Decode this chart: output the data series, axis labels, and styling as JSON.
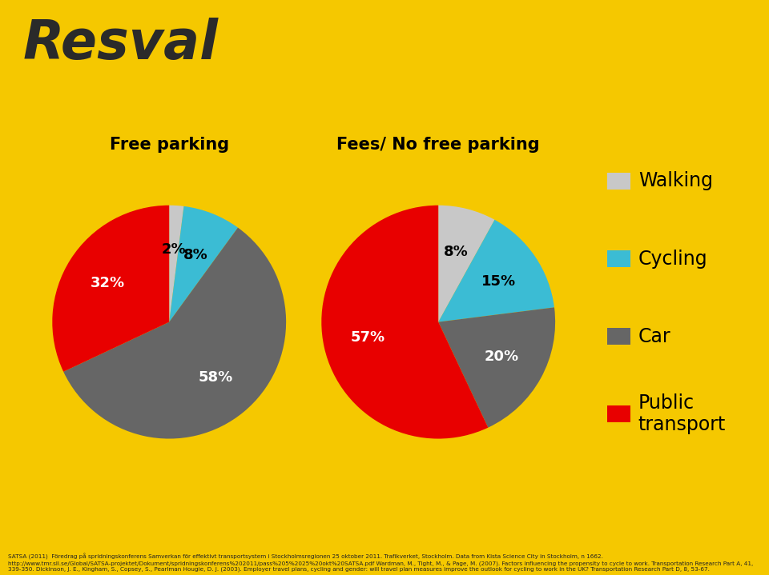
{
  "background_color": "#F5C800",
  "title_text": "Resval",
  "title_color": "#2a2a2a",
  "pie1_title": "Free parking",
  "pie2_title": "Fees/ No free parking",
  "pie1_values": [
    2,
    8,
    58,
    32
  ],
  "pie2_values": [
    8,
    15,
    20,
    57
  ],
  "pie1_labels": [
    "2%",
    "8%",
    "58%",
    "32%"
  ],
  "pie2_labels": [
    "8%",
    "15%",
    "20%",
    "57%"
  ],
  "colors": [
    "#c8c8c8",
    "#3bbcd4",
    "#666666",
    "#e80000"
  ],
  "legend_labels": [
    "Walking",
    "Cycling",
    "Car",
    "Public\ntransport"
  ],
  "legend_colors": [
    "#c8c8c8",
    "#3bbcd4",
    "#666666",
    "#e80000"
  ],
  "footer_text": "SATSA (2011)  Föredrag på spridningskonferens Samverkan för effektivt transportsystem i Stockholmsregionen 25 oktober 2011. Trafikverket, Stockholm. Data from Kista Science City in Stockholm, n 1662. http://www.tmr.sll.se/Global/SATSA-projektet/Dokument/spridningskonferens%202011/pass%205%2025%20okt%20SATSA.pdf Wardman, M., Tight, M., & Page, M. (2007). Factors influencing the propensity to cycle to work. Transportation Research Part A, 41, 339-350. Dickinson, J. E., Kingham, S., Copsey, S., Pearlman Hougie, D. J. (2003). Employer travel plans, cycling and gender: will travel plan measures improve the outlook for cycling to work in the UK? Transportation Research Part D, 8, 53-67.",
  "pie1_startangle": 90,
  "pie2_startangle": 90,
  "label_colors": [
    "black",
    "black",
    "white",
    "white"
  ]
}
